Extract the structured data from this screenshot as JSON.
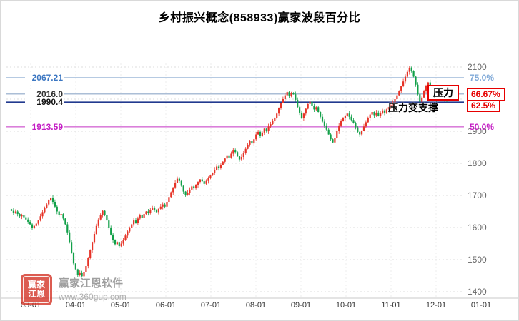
{
  "title": "乡村振兴概念(858933)赢家波段百分比",
  "annotations": {
    "pressure": "压力",
    "pressure_support": "压力变支撑"
  },
  "watermark": {
    "logo_line1": "赢家",
    "logo_line2": "江恩",
    "name": "赢家江恩软件",
    "url": "www.360gup.com"
  },
  "chart_data": {
    "type": "candlestick",
    "title": "乡村振兴概念(858933)赢家波段百分比",
    "ylim": [
      1400,
      2100
    ],
    "y_ticks": [
      2100,
      2000,
      1900,
      1800,
      1700,
      1600,
      1500,
      1400
    ],
    "x_ticks": [
      "03-01",
      "04-01",
      "05-01",
      "06-01",
      "07-01",
      "08-01",
      "09-01",
      "10-01",
      "11-01",
      "12-01",
      "01-01"
    ],
    "grid": true,
    "up_color": "#e63327",
    "down_color": "#12a049",
    "levels": [
      {
        "value": 2067.21,
        "price_label": "2067.21",
        "percent_label": "75.0%",
        "line_color": "#9db8d8",
        "price_color": "#3c77c2",
        "percent_color": "#7fa9d8",
        "boxed": false,
        "emphasis": false
      },
      {
        "value": 2016.0,
        "price_label": "2016.0",
        "percent_label": "66.67%",
        "line_color": "#8fa8c8",
        "price_color": "#333333",
        "percent_color": "#e60000",
        "boxed": true,
        "emphasis": false
      },
      {
        "value": 1990.4,
        "price_label": "1990.4",
        "percent_label": "62.5%",
        "line_color": "#223a8f",
        "price_color": "#111111",
        "percent_color": "#e60000",
        "boxed": true,
        "emphasis": true
      },
      {
        "value": 1913.59,
        "price_label": "1913.59",
        "percent_label": "50.0%",
        "line_color": "#c433c4",
        "price_color": "#c41dc4",
        "percent_color": "#c41dc4",
        "boxed": false,
        "emphasis": false
      }
    ],
    "closes": [
      1652,
      1645,
      1650,
      1642,
      1635,
      1640,
      1632,
      1625,
      1618,
      1610,
      1600,
      1605,
      1612,
      1622,
      1635,
      1648,
      1660,
      1672,
      1685,
      1692,
      1680,
      1665,
      1650,
      1638,
      1642,
      1628,
      1610,
      1585,
      1555,
      1520,
      1488,
      1470,
      1452,
      1458,
      1448,
      1462,
      1480,
      1505,
      1530,
      1555,
      1580,
      1605,
      1625,
      1640,
      1652,
      1640,
      1622,
      1600,
      1578,
      1560,
      1548,
      1555,
      1542,
      1550,
      1562,
      1575,
      1588,
      1600,
      1610,
      1622,
      1615,
      1628,
      1638,
      1630,
      1642,
      1650,
      1645,
      1655,
      1662,
      1655,
      1648,
      1658,
      1665,
      1672,
      1665,
      1680,
      1695,
      1710,
      1725,
      1740,
      1752,
      1745,
      1730,
      1712,
      1700,
      1708,
      1718,
      1728,
      1722,
      1732,
      1742,
      1750,
      1744,
      1736,
      1745,
      1755,
      1762,
      1770,
      1780,
      1790,
      1785,
      1795,
      1805,
      1815,
      1825,
      1818,
      1830,
      1842,
      1835,
      1822,
      1812,
      1820,
      1832,
      1845,
      1858,
      1870,
      1862,
      1875,
      1890,
      1898,
      1885,
      1896,
      1908,
      1900,
      1915,
      1922,
      1932,
      1940,
      1955,
      1972,
      1988,
      2000,
      2012,
      2022,
      2010,
      2020,
      2015,
      1998,
      1975,
      1958,
      1942,
      1955,
      1970,
      1985,
      1992,
      1980,
      1968,
      1975,
      1960,
      1945,
      1930,
      1918,
      1905,
      1890,
      1875,
      1865,
      1880,
      1900,
      1918,
      1932,
      1940,
      1948,
      1955,
      1945,
      1935,
      1925,
      1912,
      1898,
      1890,
      1902,
      1915,
      1928,
      1940,
      1952,
      1960,
      1950,
      1958,
      1948,
      1956,
      1965,
      1958,
      1968,
      1975,
      1982,
      1990,
      2000,
      2012,
      2025,
      2040,
      2055,
      2070,
      2085,
      2098,
      2088,
      2070,
      2045,
      2015,
      1992,
      2005,
      2025,
      2042,
      2052,
      2038,
      2020,
      2008,
      1998,
      2010,
      2018,
      2008,
      2000,
      1996,
      2004
    ]
  }
}
